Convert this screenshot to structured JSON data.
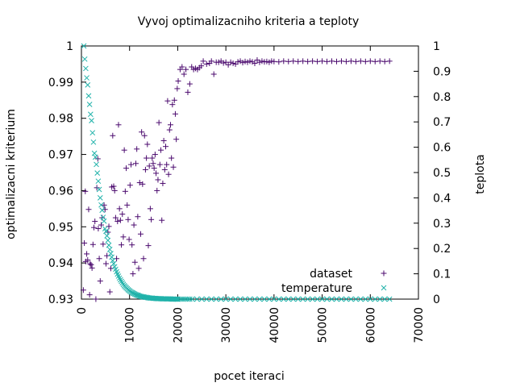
{
  "chart_data": {
    "type": "scatter",
    "title": "Vyvoj optimalizacniho kriteria a teploty",
    "xlabel": "pocet iteraci",
    "ylabel": "optimalizacni kriterium",
    "y2label": "teplota",
    "xlim": [
      0,
      70000
    ],
    "ylim": [
      0.93,
      1.0
    ],
    "y2lim": [
      0,
      1
    ],
    "xticks": [
      "0",
      "10000",
      "20000",
      "30000",
      "40000",
      "50000",
      "60000",
      "70000"
    ],
    "yticks": [
      "0.93",
      "0.94",
      "0.95",
      "0.96",
      "0.97",
      "0.98",
      "0.99",
      "1"
    ],
    "y2ticks": [
      "0",
      "0.1",
      "0.2",
      "0.3",
      "0.4",
      "0.5",
      "0.6",
      "0.7",
      "0.8",
      "0.9",
      "1"
    ],
    "grid": false,
    "legend_position": "bottom-right",
    "colors": {
      "dataset": "#4b0a6e",
      "temperature": "#20b2aa"
    },
    "series": [
      {
        "name": "dataset",
        "axis": "y",
        "marker": "plus",
        "x": [
          400,
          600,
          800,
          900,
          1100,
          1300,
          1500,
          1700,
          1800,
          2000,
          2200,
          2400,
          2600,
          2800,
          3000,
          3200,
          3400,
          3500,
          3700,
          3900,
          4100,
          4300,
          4500,
          4700,
          4900,
          5100,
          5300,
          5500,
          5700,
          5900,
          6100,
          6300,
          6500,
          6700,
          6900,
          7100,
          7300,
          7500,
          7700,
          7900,
          8100,
          8300,
          8500,
          8700,
          8900,
          9100,
          9300,
          9500,
          9700,
          9900,
          10100,
          10300,
          10500,
          10700,
          10900,
          11100,
          11300,
          11500,
          11700,
          11900,
          12100,
          12300,
          12500,
          12700,
          12900,
          13100,
          13300,
          13500,
          13700,
          13900,
          14100,
          14300,
          14500,
          14700,
          14900,
          15100,
          15300,
          15500,
          15700,
          15900,
          16100,
          16300,
          16500,
          16700,
          16900,
          17100,
          17300,
          17500,
          17700,
          17900,
          18100,
          18300,
          18500,
          18700,
          18900,
          19100,
          19300,
          19500,
          19700,
          19900,
          20100,
          20500,
          20900,
          21300,
          21700,
          22100,
          22500,
          22900,
          23300,
          23700,
          24100,
          24500,
          24900,
          25300,
          26000,
          26600,
          27000,
          27500,
          28000,
          28500,
          29000,
          29500,
          30000,
          30500,
          31000,
          31500,
          32000,
          32500,
          33000,
          33500,
          34000,
          34500,
          35000,
          35500,
          36000,
          36500,
          37000,
          37500,
          38000,
          38500,
          39000,
          39500,
          40000,
          41000,
          42000,
          43000,
          44000,
          45000,
          46000,
          47000,
          48000,
          49000,
          50000,
          51000,
          52000,
          53000,
          54000,
          55000,
          56000,
          57000,
          58000,
          59000,
          60000,
          61000,
          62000,
          63000,
          64000
        ],
        "y": [
          0.9325,
          0.9455,
          0.9598,
          0.9404,
          0.9425,
          0.9408,
          0.9548,
          0.9312,
          0.9398,
          0.9395,
          0.9386,
          0.9451,
          0.9498,
          0.9515,
          0.93,
          0.9608,
          0.9688,
          0.9495,
          0.9412,
          0.935,
          0.9505,
          0.9525,
          0.9452,
          0.956,
          0.9548,
          0.9398,
          0.942,
          0.9485,
          0.9501,
          0.932,
          0.9385,
          0.961,
          0.9752,
          0.9612,
          0.96,
          0.9525,
          0.9412,
          0.9515,
          0.9782,
          0.955,
          0.9518,
          0.945,
          0.9535,
          0.9472,
          0.9712,
          0.9598,
          0.9662,
          0.956,
          0.952,
          0.9465,
          0.9615,
          0.9672,
          0.945,
          0.937,
          0.9505,
          0.9402,
          0.9675,
          0.9715,
          0.9528,
          0.9385,
          0.9622,
          0.948,
          0.9762,
          0.9618,
          0.9412,
          0.9752,
          0.9658,
          0.969,
          0.9728,
          0.9448,
          0.9668,
          0.955,
          0.952,
          0.969,
          0.9675,
          0.9662,
          0.97,
          0.9648,
          0.96,
          0.963,
          0.9788,
          0.9672,
          0.9712,
          0.9518,
          0.962,
          0.9738,
          0.9658,
          0.9722,
          0.9672,
          0.9848,
          0.9645,
          0.9768,
          0.9782,
          0.969,
          0.9838,
          0.9665,
          0.985,
          0.9812,
          0.9742,
          0.9882,
          0.9903,
          0.9935,
          0.9942,
          0.9922,
          0.9935,
          0.9872,
          0.9895,
          0.9942,
          0.9935,
          0.9938,
          0.9935,
          0.994,
          0.9945,
          0.9958,
          0.995,
          0.9952,
          0.9958,
          0.9922,
          0.9955,
          0.9955,
          0.9958,
          0.9953,
          0.9955,
          0.9948,
          0.9955,
          0.9952,
          0.995,
          0.9956,
          0.9958,
          0.9954,
          0.9957,
          0.9955,
          0.9958,
          0.9956,
          0.9952,
          0.9961,
          0.9955,
          0.9958,
          0.9956,
          0.9957,
          0.9955,
          0.9958,
          0.9957,
          0.9956,
          0.9958,
          0.9957,
          0.9958,
          0.9957,
          0.9958,
          0.9957,
          0.9958,
          0.9957,
          0.9958,
          0.9957,
          0.9958,
          0.9957,
          0.9958,
          0.9957,
          0.9958,
          0.9957,
          0.9958,
          0.9957,
          0.9958,
          0.9957,
          0.9958,
          0.9957,
          0.9958
        ]
      },
      {
        "name": "temperature",
        "axis": "y2",
        "marker": "cross",
        "x": [
          500,
          700,
          900,
          1100,
          1300,
          1500,
          1700,
          1900,
          2100,
          2300,
          2500,
          2700,
          2900,
          3100,
          3300,
          3500,
          3700,
          3900,
          4100,
          4300,
          4500,
          4700,
          4900,
          5100,
          5300,
          5500,
          5700,
          5900,
          6100,
          6300,
          6500,
          6700,
          6900,
          7100,
          7300,
          7500,
          7700,
          7900,
          8100,
          8300,
          8500,
          8700,
          8900,
          9100,
          9300,
          9500,
          9700,
          9900,
          10100,
          10300,
          10500,
          10700,
          10900,
          11100,
          11300,
          11500,
          11700,
          11900,
          12100,
          12300,
          12500,
          12700,
          12900,
          13100,
          13300,
          13500,
          13700,
          13900,
          14100,
          14300,
          14500,
          14700,
          14900,
          15100,
          15300,
          15500,
          15700,
          15900,
          16100,
          16300,
          16500,
          16700,
          16900,
          17100,
          17300,
          17500,
          17700,
          17900,
          18100,
          18300,
          18500,
          18700,
          18900,
          19100,
          19300,
          19500,
          19700,
          19900,
          20100,
          20500,
          20900,
          21300,
          21700,
          22100,
          22500,
          23000,
          24000,
          25000,
          26000,
          27000,
          28000,
          29000,
          30000,
          31000,
          32000,
          33000,
          34000,
          35000,
          36000,
          37000,
          38000,
          39000,
          40000,
          41000,
          42000,
          43000,
          44000,
          45000,
          46000,
          47000,
          48000,
          49000,
          50000,
          51000,
          52000,
          53000,
          54000,
          55000,
          56000,
          57000,
          58000,
          59000,
          60000,
          61000,
          62000,
          63000,
          64000
        ],
        "y": [
          1.0,
          0.948,
          0.911,
          0.874,
          0.846,
          0.803,
          0.769,
          0.73,
          0.705,
          0.657,
          0.62,
          0.576,
          0.561,
          0.532,
          0.498,
          0.466,
          0.433,
          0.4,
          0.372,
          0.351,
          0.323,
          0.308,
          0.278,
          0.268,
          0.25,
          0.232,
          0.213,
          0.196,
          0.18,
          0.166,
          0.152,
          0.14,
          0.128,
          0.118,
          0.108,
          0.099,
          0.091,
          0.083,
          0.076,
          0.07,
          0.064,
          0.058,
          0.053,
          0.049,
          0.045,
          0.041,
          0.037,
          0.034,
          0.031,
          0.028,
          0.026,
          0.024,
          0.022,
          0.02,
          0.018,
          0.016,
          0.015,
          0.014,
          0.012,
          0.011,
          0.01,
          0.009,
          0.009,
          0.008,
          0.007,
          0.007,
          0.006,
          0.005,
          0.005,
          0.004,
          0.004,
          0.004,
          0.003,
          0.003,
          0.003,
          0.002,
          0.002,
          0.002,
          0.002,
          0.002,
          0.002,
          0.001,
          0.001,
          0.001,
          0.001,
          0.001,
          0.001,
          0.001,
          0.001,
          0.001,
          0.001,
          0.0,
          0.0,
          0.0,
          0.0,
          0.0,
          0.0,
          0.0,
          0.0,
          0.0,
          0.0,
          0.0,
          0.0,
          0.0,
          0.0,
          0.0,
          0.0,
          0.0,
          0.0,
          0.0,
          0.0,
          0.0,
          0.0,
          0.0,
          0.0,
          0.0,
          0.0,
          0.0,
          0.0,
          0.0,
          0.0,
          0.0,
          0.0,
          0.0,
          0.0,
          0.0,
          0.0,
          0.0,
          0.0,
          0.0,
          0.0,
          0.0,
          0.0,
          0.0,
          0.0,
          0.0,
          0.0,
          0.0,
          0.0,
          0.0,
          0.0,
          0.0,
          0.0,
          0.0,
          0.0,
          0.0,
          0.0
        ]
      }
    ]
  }
}
